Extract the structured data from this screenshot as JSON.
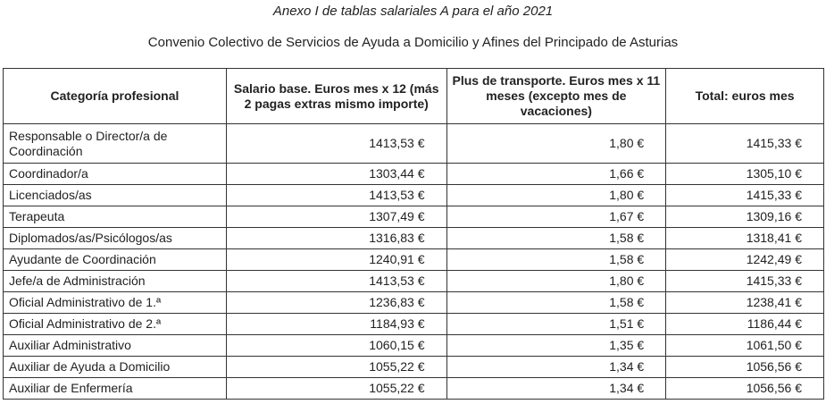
{
  "title": "Anexo I de tablas salariales A para el año 2021",
  "subtitle": "Convenio Colectivo de Servicios de Ayuda a Domicilio y Afines del Principado de Asturias",
  "headers": [
    "Categoría profesional",
    "Salario base. Euros mes x 12 (más 2 pagas extras mismo importe)",
    "Plus de transporte. Euros mes x 11 meses (excepto mes de vacaciones)",
    "Total: euros mes"
  ],
  "rows": [
    [
      "Responsable o Director/a de Coordinación",
      "1413,53 €",
      "1,80 €",
      "1415,33 €"
    ],
    [
      "Coordinador/a",
      "1303,44 €",
      "1,66 €",
      "1305,10 €"
    ],
    [
      "Licenciados/as",
      "1413,53 €",
      "1,80 €",
      "1415,33 €"
    ],
    [
      "Terapeuta",
      "1307,49 €",
      "1,67 €",
      "1309,16 €"
    ],
    [
      "Diplomados/as/Psicólogos/as",
      "1316,83 €",
      "1,58 €",
      "1318,41 €"
    ],
    [
      "Ayudante de Coordinación",
      "1240,91 €",
      "1,58 €",
      "1242,49 €"
    ],
    [
      "Jefe/a de Administración",
      "1413,53 €",
      "1,80 €",
      "1415,33 €"
    ],
    [
      "Oficial Administrativo de 1.ª",
      "1236,83 €",
      "1,58 €",
      "1238,41 €"
    ],
    [
      "Oficial Administrativo de 2.ª",
      "1184,93 €",
      "1,51 €",
      "1186,44 €"
    ],
    [
      "Auxiliar Administrativo",
      "1060,15 €",
      "1,35 €",
      "1061,50 €"
    ],
    [
      "Auxiliar de Ayuda a Domicilio",
      "1055,22 €",
      "1,34 €",
      "1056,56 €"
    ],
    [
      "Auxiliar de Enfermería",
      "1055,22 €",
      "1,34 €",
      "1056,56 €"
    ]
  ]
}
